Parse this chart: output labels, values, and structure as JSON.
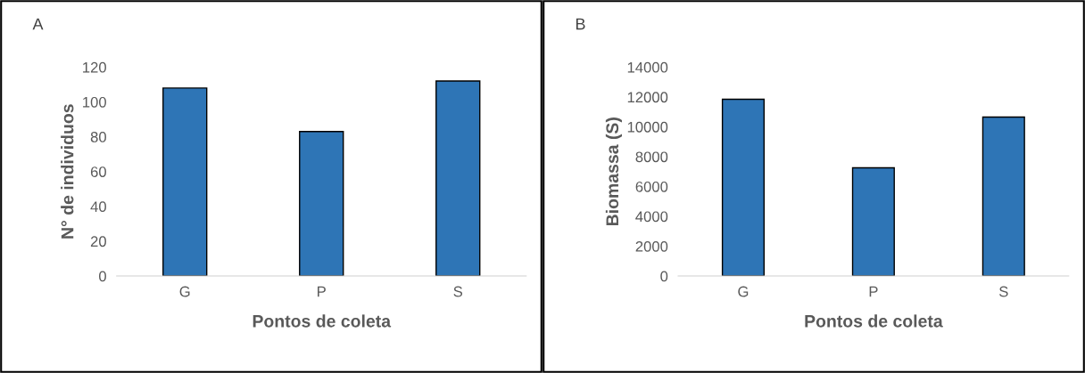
{
  "chart_data": [
    {
      "type": "bar",
      "title": "A",
      "xlabel": "Pontos de coleta",
      "ylabel": "N° de individuos",
      "categories": [
        "G",
        "P",
        "S"
      ],
      "values": [
        108,
        83,
        112
      ],
      "color": "#2e75b6",
      "ylim": [
        0,
        120
      ],
      "yticks": [
        0,
        20,
        40,
        60,
        80,
        100,
        120
      ],
      "grid": false
    },
    {
      "type": "bar",
      "title": "B",
      "xlabel": "Pontos de coleta",
      "ylabel": "Biomassa (S)",
      "categories": [
        "G",
        "P",
        "S"
      ],
      "values": [
        11850,
        7250,
        10650
      ],
      "color": "#2e75b6",
      "ylim": [
        0,
        14000
      ],
      "yticks": [
        0,
        2000,
        4000,
        6000,
        8000,
        10000,
        12000,
        14000
      ],
      "grid": false
    }
  ]
}
